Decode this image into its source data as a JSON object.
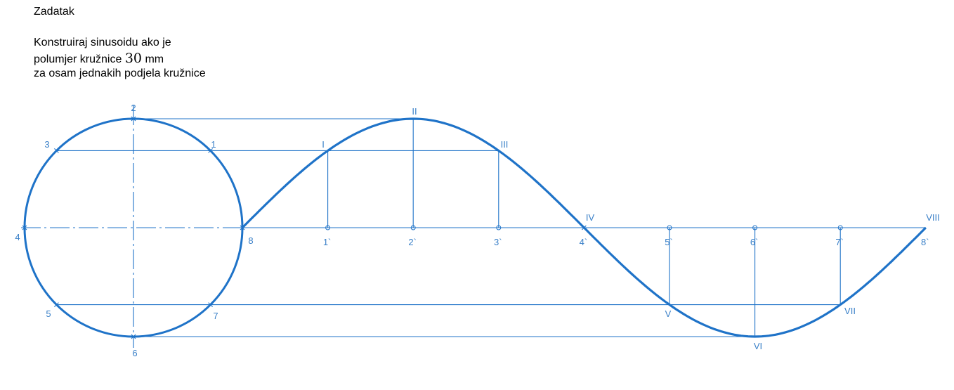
{
  "task": {
    "title": "Zadatak",
    "line1": "Konstruiraj sinusoidu ako je",
    "line2_prefix": "polumjer kružnice ",
    "radius_value": "30",
    "line2_unit": " mm",
    "line3": "za osam jednakih podjela kružnice"
  },
  "colors": {
    "stroke": "#1f73c8",
    "label": "#3a80c8"
  },
  "diagram": {
    "circle_labels": [
      "1",
      "2",
      "3",
      "4",
      "5",
      "6",
      "7",
      "8"
    ],
    "axis_labels": [
      "1`",
      "2`",
      "3`",
      "4`",
      "5`",
      "6`",
      "7`",
      "8`"
    ],
    "curve_labels": [
      "I",
      "II",
      "III",
      "IV",
      "V",
      "VI",
      "VII",
      "VIII"
    ]
  }
}
